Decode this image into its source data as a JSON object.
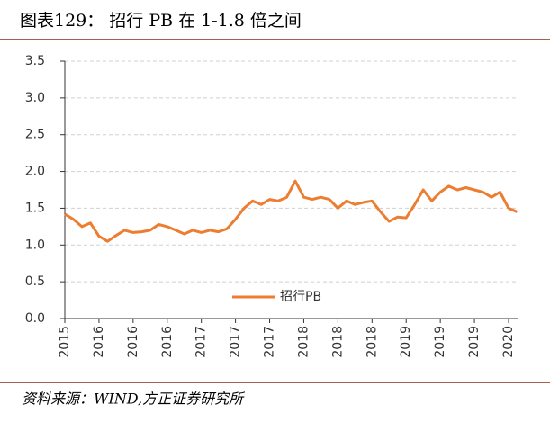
{
  "chart_data": {
    "type": "line",
    "title": "图表129：  招行 PB 在 1-1.8 倍之间",
    "source": "资料来源：WIND,方正证券研究所",
    "categories": [
      "2015",
      null,
      null,
      null,
      "2016",
      null,
      null,
      null,
      "2016",
      null,
      null,
      null,
      "2016",
      null,
      null,
      null,
      "2017",
      null,
      null,
      null,
      "2017",
      null,
      null,
      null,
      "2017",
      null,
      null,
      null,
      "2018",
      null,
      null,
      null,
      "2018",
      null,
      null,
      null,
      "2018",
      null,
      null,
      null,
      "2019",
      null,
      null,
      null,
      "2019",
      null,
      null,
      null,
      "2019",
      null,
      null,
      null,
      "2020",
      null
    ],
    "series": [
      {
        "name": "招行PB",
        "color": "#ed7d31",
        "values": [
          1.42,
          1.35,
          1.25,
          1.3,
          1.12,
          1.05,
          1.13,
          1.2,
          1.17,
          1.18,
          1.2,
          1.28,
          1.25,
          1.2,
          1.15,
          1.2,
          1.17,
          1.2,
          1.18,
          1.22,
          1.35,
          1.5,
          1.6,
          1.55,
          1.62,
          1.6,
          1.65,
          1.87,
          1.65,
          1.62,
          1.65,
          1.62,
          1.5,
          1.6,
          1.55,
          1.58,
          1.6,
          1.45,
          1.32,
          1.38,
          1.37,
          1.55,
          1.75,
          1.6,
          1.72,
          1.8,
          1.75,
          1.78,
          1.75,
          1.72,
          1.65,
          1.72,
          1.5,
          1.45
        ]
      }
    ],
    "ylim": [
      0,
      3.5
    ],
    "yticks": [
      {
        "value": 0,
        "label": "0.0"
      },
      {
        "value": 0.5,
        "label": "0.5"
      },
      {
        "value": 1,
        "label": "1.0"
      },
      {
        "value": 1.5,
        "label": "1.5"
      },
      {
        "value": 2,
        "label": "2.0"
      },
      {
        "value": 2.5,
        "label": "2.5"
      },
      {
        "value": 3,
        "label": "3.0"
      },
      {
        "value": 3.5,
        "label": "3.5"
      }
    ],
    "grid": true
  }
}
